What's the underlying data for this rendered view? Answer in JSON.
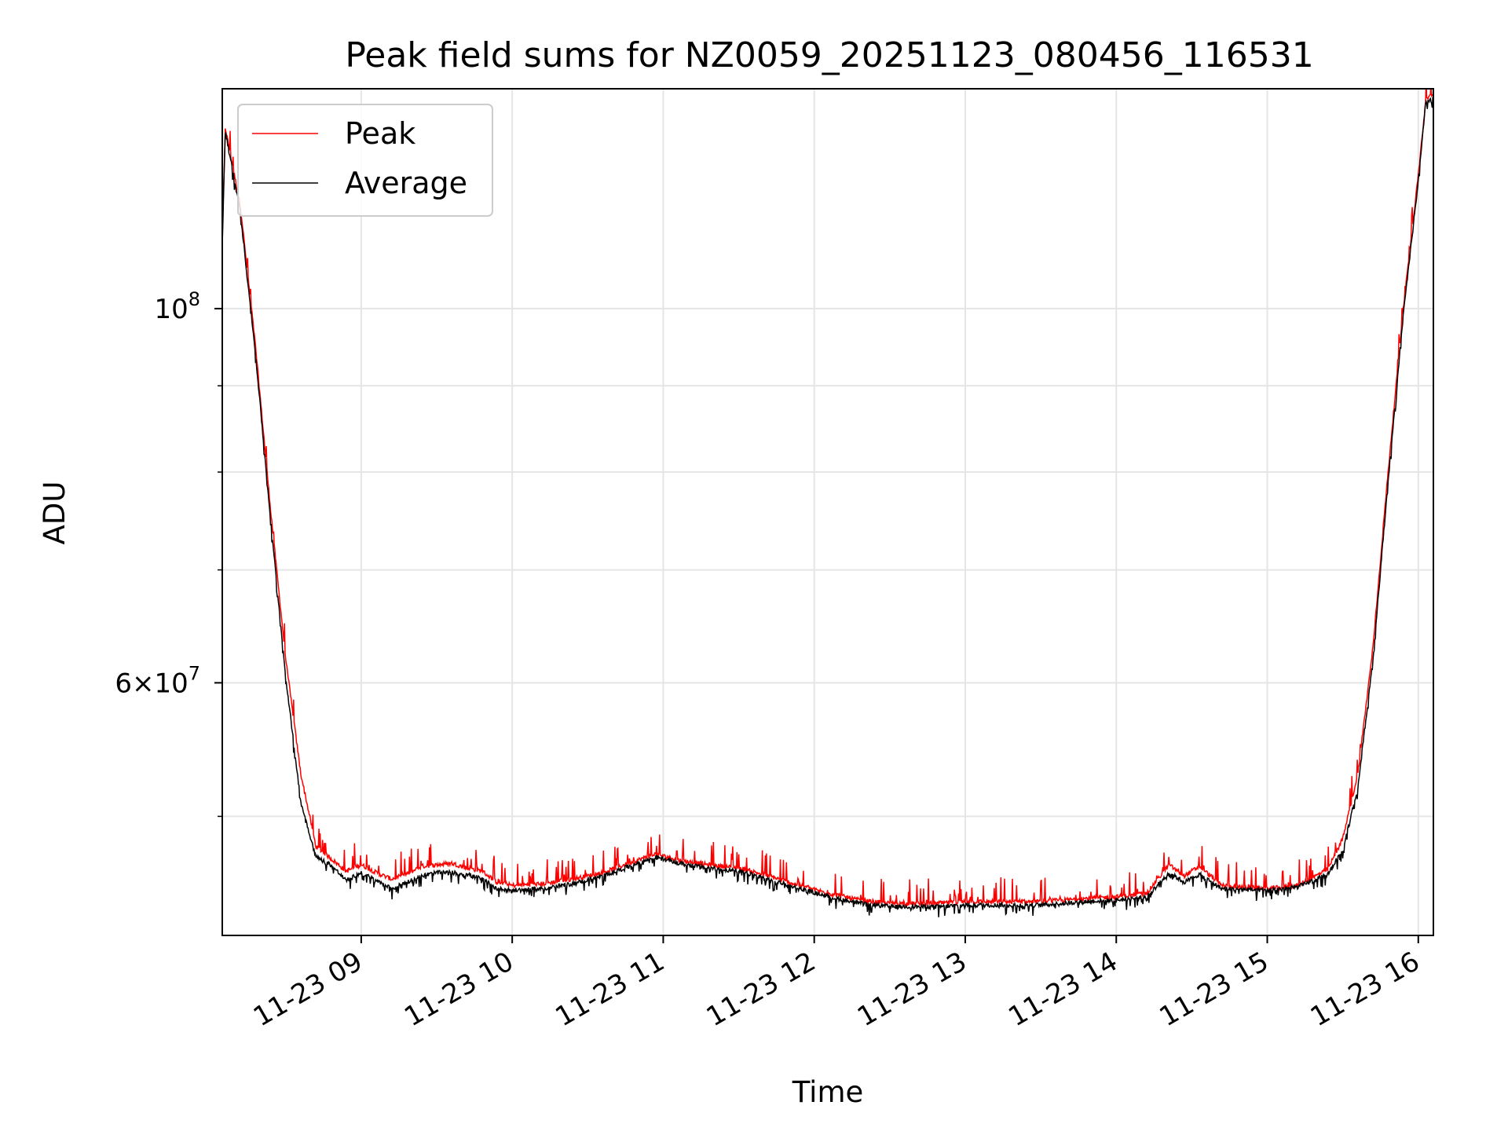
{
  "chart_data": {
    "type": "line",
    "title": "Peak field sums for NZ0059_20251123_080456_116531",
    "xlabel": "Time",
    "ylabel": "ADU",
    "yscale": "log",
    "grid": true,
    "legend_position": "top-left",
    "xlim_hours": [
      8.08,
      16.1
    ],
    "ylim": [
      42500000,
      135000000
    ],
    "x_tick_hours": [
      9,
      10,
      11,
      12,
      13,
      14,
      15,
      16
    ],
    "x_tick_labels": [
      "11-23 09",
      "11-23 10",
      "11-23 11",
      "11-23 12",
      "11-23 13",
      "11-23 14",
      "11-23 15",
      "11-23 16"
    ],
    "y_major_ticks": [
      {
        "value": 100000000,
        "base": "10",
        "exp": "8",
        "mult": ""
      },
      {
        "value": 60000000,
        "base": "10",
        "exp": "7",
        "mult": "6×"
      }
    ],
    "y_minor_ticks": [
      50000000,
      70000000,
      80000000,
      90000000
    ],
    "series": [
      {
        "name": "Peak",
        "color": "#ff0000",
        "hours": [
          8.08,
          8.1,
          8.2,
          8.3,
          8.4,
          8.5,
          8.6,
          8.7,
          8.8,
          8.9,
          9.0,
          9.1,
          9.2,
          9.3,
          9.4,
          9.5,
          9.6,
          9.7,
          9.8,
          9.9,
          10.0,
          10.2,
          10.4,
          10.6,
          10.8,
          10.95,
          11.1,
          11.3,
          11.5,
          11.7,
          11.9,
          12.1,
          12.3,
          12.5,
          12.8,
          13.0,
          13.2,
          13.5,
          13.8,
          14.0,
          14.2,
          14.35,
          14.45,
          14.55,
          14.7,
          15.0,
          15.2,
          15.4,
          15.5,
          15.6,
          15.7,
          15.8,
          15.9,
          16.0,
          16.05,
          16.1
        ],
        "values": [
          110000000,
          128000000,
          115000000,
          95000000,
          76000000,
          62000000,
          53000000,
          48000000,
          47200000,
          46400000,
          46800000,
          46300000,
          45900000,
          46200000,
          46700000,
          46800000,
          46900000,
          46600000,
          46400000,
          45700000,
          45500000,
          45600000,
          45900000,
          46300000,
          47000000,
          47500000,
          47100000,
          46800000,
          46600000,
          46100000,
          45500000,
          45000000,
          44600000,
          44400000,
          44400000,
          44500000,
          44500000,
          44500000,
          44700000,
          44800000,
          45000000,
          46800000,
          46100000,
          46700000,
          45500000,
          45300000,
          45500000,
          46500000,
          48500000,
          53000000,
          63000000,
          80000000,
          100000000,
          120000000,
          133000000,
          134000000
        ]
      },
      {
        "name": "Average",
        "color": "#000000",
        "hours": [
          8.08,
          8.1,
          8.2,
          8.3,
          8.4,
          8.5,
          8.6,
          8.7,
          8.8,
          8.9,
          9.0,
          9.1,
          9.2,
          9.3,
          9.4,
          9.5,
          9.6,
          9.7,
          9.8,
          9.9,
          10.0,
          10.2,
          10.4,
          10.6,
          10.8,
          10.95,
          11.1,
          11.3,
          11.5,
          11.7,
          11.9,
          12.1,
          12.3,
          12.5,
          12.8,
          13.0,
          13.2,
          13.5,
          13.8,
          14.0,
          14.2,
          14.35,
          14.45,
          14.55,
          14.7,
          15.0,
          15.2,
          15.4,
          15.5,
          15.6,
          15.7,
          15.8,
          15.9,
          16.0,
          16.05,
          16.1
        ],
        "values": [
          109000000,
          127500000,
          114000000,
          94000000,
          75000000,
          60500000,
          51000000,
          47300000,
          46800000,
          45800000,
          46300000,
          45800000,
          45300000,
          45700000,
          46100000,
          46300000,
          46300000,
          46200000,
          45900000,
          45300000,
          45200000,
          45300000,
          45600000,
          46100000,
          46800000,
          47300000,
          46900000,
          46600000,
          46400000,
          45900000,
          45300000,
          44800000,
          44400000,
          44200000,
          44200000,
          44300000,
          44300000,
          44300000,
          44500000,
          44600000,
          44800000,
          46300000,
          45700000,
          46200000,
          45300000,
          45200000,
          45400000,
          46200000,
          47800000,
          52000000,
          62000000,
          79000000,
          99000000,
          119000000,
          132500000,
          133500000
        ]
      }
    ]
  }
}
